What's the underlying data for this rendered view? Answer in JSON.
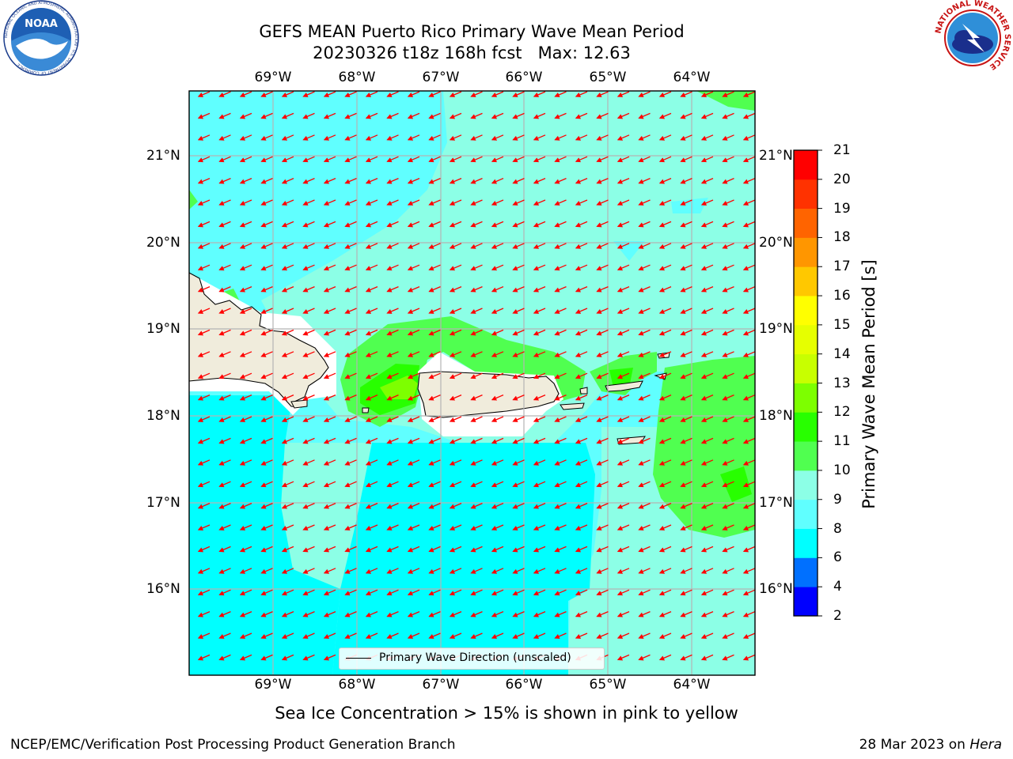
{
  "header": {
    "title_line1": "GEFS MEAN Puerto Rico Primary Wave Mean Period",
    "title_line2": "20230326 t18z 168h fcst   Max: 12.63"
  },
  "logos": {
    "noaa_text": "NOAA",
    "noaa_ring": "NATIONAL OCEANIC AND ATMOSPHERIC ADMINISTRATION · U.S. DEPARTMENT OF COMMERCE",
    "nws_ring": "NATIONAL WEATHER SERVICE"
  },
  "map": {
    "lon_labels": [
      "69°W",
      "68°W",
      "67°W",
      "66°W",
      "65°W",
      "64°W"
    ],
    "lat_labels": [
      "21°N",
      "20°N",
      "19°N",
      "18°N",
      "17°N",
      "16°N"
    ],
    "legend_label": "Primary Wave Direction (unscaled)",
    "colors": {
      "land": "#f0ecdc",
      "arrow": "#ff0000",
      "grid": "#b4b4b4"
    },
    "wave_direction": "northeast-to-southwest"
  },
  "colorbar": {
    "label": "Primary Wave Mean Period [s]",
    "ticks": [
      "2",
      "4",
      "6",
      "8",
      "9",
      "10",
      "11",
      "12",
      "13",
      "14",
      "15",
      "16",
      "17",
      "18",
      "19",
      "20",
      "21"
    ],
    "colors": [
      "#0000ff",
      "#0070ff",
      "#00ffff",
      "#60ffff",
      "#8cffe6",
      "#50ff50",
      "#28ff00",
      "#7dff00",
      "#c8ff00",
      "#e6ff00",
      "#ffff00",
      "#ffc800",
      "#ff9600",
      "#ff6400",
      "#ff3200",
      "#ff0000"
    ]
  },
  "notes": {
    "sea_ice": "Sea Ice Concentration > 15% is shown in pink to yellow"
  },
  "footer": {
    "left": "NCEP/EMC/Verification Post Processing Product Generation Branch",
    "date": "28 Mar 2023 on",
    "machine": "Hera"
  }
}
